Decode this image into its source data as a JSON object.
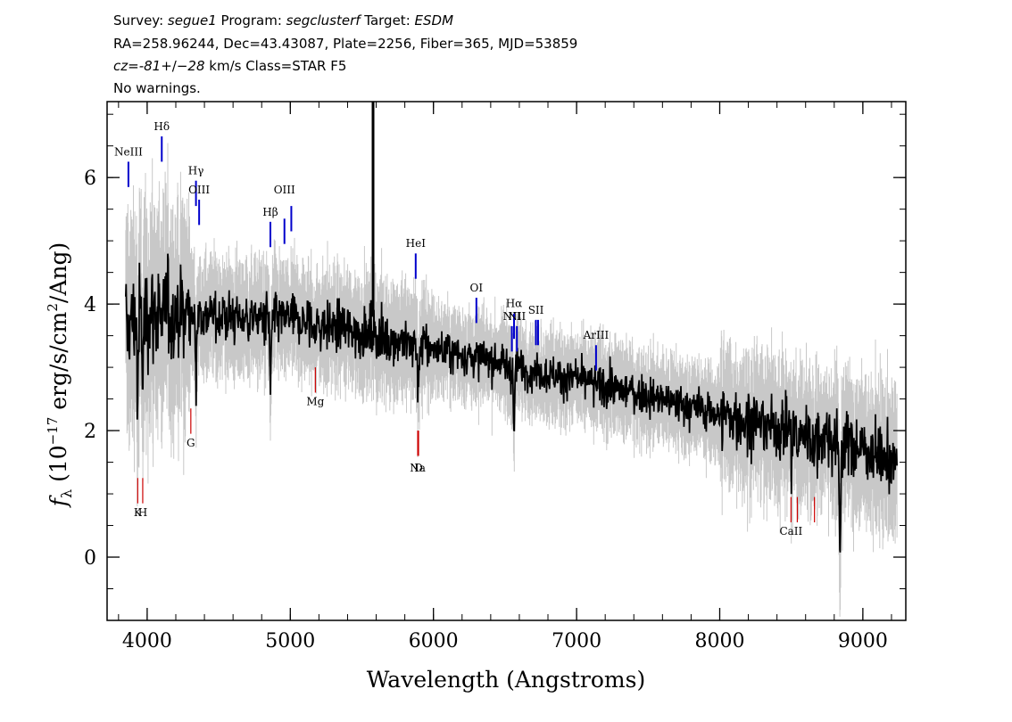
{
  "header": {
    "survey_label": "Survey: ",
    "survey": "segue1",
    "program_label": " Program: ",
    "program": "segclusterf",
    "target_label": " Target: ",
    "target": "ESDM",
    "line2": "RA=258.96244, Dec=43.43087, Plate=2256, Fiber=365, MJD=53859",
    "cz_symbol": "cz",
    "cz_eq": "=",
    "cz_value": "-81",
    "cz_pm": "+/−",
    "cz_err": "28",
    "cz_rest": " km/s Class=STAR F5",
    "line4": "No warnings."
  },
  "chart_data": {
    "type": "line",
    "xlabel": "Wavelength (Angstroms)",
    "ylabel_prefix": "f",
    "ylabel_sub": "λ",
    "ylabel_main": " (10",
    "ylabel_exp": "−17",
    "ylabel_units": " erg/s/cm",
    "ylabel_sq": "2",
    "ylabel_end": "/Ang)",
    "xlim": [
      3720,
      9300
    ],
    "ylim": [
      -1.0,
      7.2
    ],
    "x_ticks": [
      4000,
      5000,
      6000,
      7000,
      8000,
      9000
    ],
    "y_ticks": [
      0,
      2,
      4,
      6
    ],
    "x_tick_labels": [
      "4000",
      "5000",
      "6000",
      "7000",
      "8000",
      "9000"
    ],
    "y_tick_labels": [
      "0",
      "2",
      "4",
      "6"
    ],
    "grid": false,
    "series": [
      {
        "color": "#000000",
        "style": "spectrum-flux",
        "x_range": [
          3850,
          9240
        ],
        "continuum": [
          [
            3850,
            3.6
          ],
          [
            3950,
            3.85
          ],
          [
            4100,
            3.9
          ],
          [
            4500,
            3.8
          ],
          [
            5000,
            3.75
          ],
          [
            5500,
            3.55
          ],
          [
            6000,
            3.3
          ],
          [
            6500,
            3.05
          ],
          [
            7000,
            2.8
          ],
          [
            7500,
            2.55
          ],
          [
            8000,
            2.25
          ],
          [
            8500,
            2.0
          ],
          [
            9000,
            1.7
          ],
          [
            9240,
            1.5
          ]
        ]
      },
      {
        "color": "#c8c8c8",
        "style": "spectrum-error-band",
        "x_range": [
          3850,
          9240
        ]
      }
    ],
    "sky_line": {
      "x": 5578,
      "y_top": 7.2,
      "y_bottom": 3.8,
      "color": "#000000"
    },
    "emission_lines": [
      {
        "label": "NeIII",
        "x": 3869,
        "y_label": 6.35,
        "y0": 5.85,
        "y1": 6.25,
        "color": "#0000cc"
      },
      {
        "label": "Hδ",
        "x": 4102,
        "y_label": 6.75,
        "y0": 6.25,
        "y1": 6.65,
        "color": "#0000cc"
      },
      {
        "label": "Hγ",
        "x": 4341,
        "y_label": 6.05,
        "y0": 5.55,
        "y1": 5.95,
        "color": "#0000cc"
      },
      {
        "label": "OIII",
        "x": 4363,
        "y_label": 5.75,
        "y0": 5.25,
        "y1": 5.65,
        "color": "#0000cc"
      },
      {
        "label": "Hβ",
        "x": 4861,
        "y_label": 5.4,
        "y0": 4.9,
        "y1": 5.3,
        "color": "#0000cc"
      },
      {
        "label": "OIII",
        "x": 4959,
        "y_label": 5.75,
        "y0": 4.95,
        "y1": 5.35,
        "color": "#0000cc"
      },
      {
        "label": "",
        "x": 5007,
        "y_label": 5.75,
        "y0": 5.15,
        "y1": 5.55,
        "color": "#0000cc"
      },
      {
        "label": "HeI",
        "x": 5876,
        "y_label": 4.9,
        "y0": 4.4,
        "y1": 4.8,
        "color": "#0000cc"
      },
      {
        "label": "OI",
        "x": 6300,
        "y_label": 4.2,
        "y0": 3.7,
        "y1": 4.1,
        "color": "#0000cc"
      },
      {
        "label": "NII",
        "x": 6548,
        "y_label": 3.75,
        "y0": 3.25,
        "y1": 3.65,
        "color": "#0000cc"
      },
      {
        "label": "Hα",
        "x": 6563,
        "y_label": 3.95,
        "y0": 3.45,
        "y1": 3.85,
        "color": "#0000cc"
      },
      {
        "label": "NII",
        "x": 6583,
        "y_label": 3.75,
        "y0": 3.25,
        "y1": 3.65,
        "color": "#0000cc"
      },
      {
        "label": "SII",
        "x": 6716,
        "y_label": 3.85,
        "y0": 3.35,
        "y1": 3.75,
        "color": "#0000cc"
      },
      {
        "label": "",
        "x": 6731,
        "y_label": 3.85,
        "y0": 3.35,
        "y1": 3.75,
        "color": "#0000cc"
      },
      {
        "label": "ArIII",
        "x": 7136,
        "y_label": 3.45,
        "y0": 2.95,
        "y1": 3.35,
        "color": "#0000cc"
      }
    ],
    "absorption_lines": [
      {
        "label": "K",
        "x": 3934,
        "y_label": 0.65,
        "y0": 0.85,
        "y1": 1.25,
        "color": "#cc0000"
      },
      {
        "label": "H",
        "x": 3969,
        "y_label": 0.65,
        "y0": 0.85,
        "y1": 1.25,
        "color": "#cc0000"
      },
      {
        "label": "G",
        "x": 4305,
        "y_label": 1.75,
        "y0": 1.95,
        "y1": 2.35,
        "color": "#cc0000"
      },
      {
        "label": "Mg",
        "x": 5175,
        "y_label": 2.4,
        "y0": 2.6,
        "y1": 3.0,
        "color": "#cc0000"
      },
      {
        "label": "Na",
        "x": 5890,
        "y_label": 1.35,
        "y0": 1.6,
        "y1": 2.0,
        "color": "#cc0000"
      },
      {
        "label": "D",
        "x": 5896,
        "y_label": 1.35,
        "y0": 1.6,
        "y1": 2.0,
        "color": "#cc0000"
      },
      {
        "label": "CaII",
        "x": 8498,
        "y_label": 0.35,
        "y0": 0.55,
        "y1": 0.95,
        "color": "#cc0000"
      },
      {
        "label": "",
        "x": 8542,
        "y_label": 0.35,
        "y0": 0.55,
        "y1": 0.95,
        "color": "#cc0000"
      },
      {
        "label": "",
        "x": 8662,
        "y_label": 0.35,
        "y0": 0.55,
        "y1": 0.95,
        "color": "#cc0000"
      }
    ]
  }
}
